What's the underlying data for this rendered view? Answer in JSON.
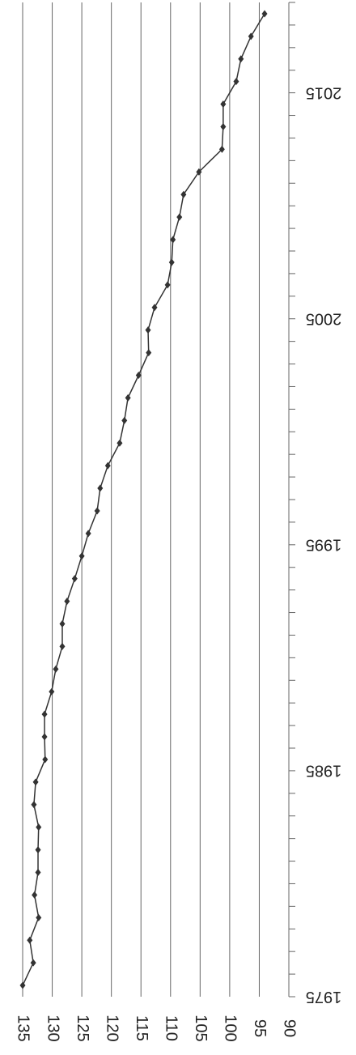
{
  "chart_data": {
    "type": "line",
    "x": [
      1975,
      1976,
      1977,
      1978,
      1979,
      1980,
      1981,
      1982,
      1983,
      1984,
      1985,
      1986,
      1987,
      1988,
      1989,
      1990,
      1991,
      1992,
      1993,
      1994,
      1995,
      1996,
      1997,
      1998,
      1999,
      2000,
      2001,
      2002,
      2003,
      2004,
      2005,
      2006,
      2007,
      2008,
      2009,
      2010,
      2011,
      2012,
      2013,
      2014,
      2015,
      2016,
      2017,
      2018
    ],
    "series": [
      {
        "color": "#333333",
        "values": [
          135,
          133.2,
          133.8,
          132.3,
          133,
          132.4,
          132.4,
          132.3,
          133.1,
          132.8,
          131.2,
          131.3,
          131.3,
          130.1,
          129.4,
          128.3,
          128.3,
          127.5,
          126.2,
          125,
          123.9,
          122.4,
          121.9,
          120.6,
          118.6,
          117.8,
          117.2,
          115.4,
          113.7,
          113.8,
          112.7,
          110.5,
          109.8,
          109.6,
          108.5,
          107.8,
          105.2,
          101.3,
          101.1,
          101.1,
          98.9,
          98.1,
          96.4,
          94.1
        ]
      }
    ],
    "xlim": [
      1974.5,
      2018.5
    ],
    "xticks": [
      1975,
      1985,
      1995,
      2005,
      2015
    ],
    "ylim": [
      90,
      135
    ],
    "yticks": [
      135,
      130,
      125,
      120,
      115,
      110,
      105,
      100,
      95,
      90
    ],
    "grid": true
  }
}
